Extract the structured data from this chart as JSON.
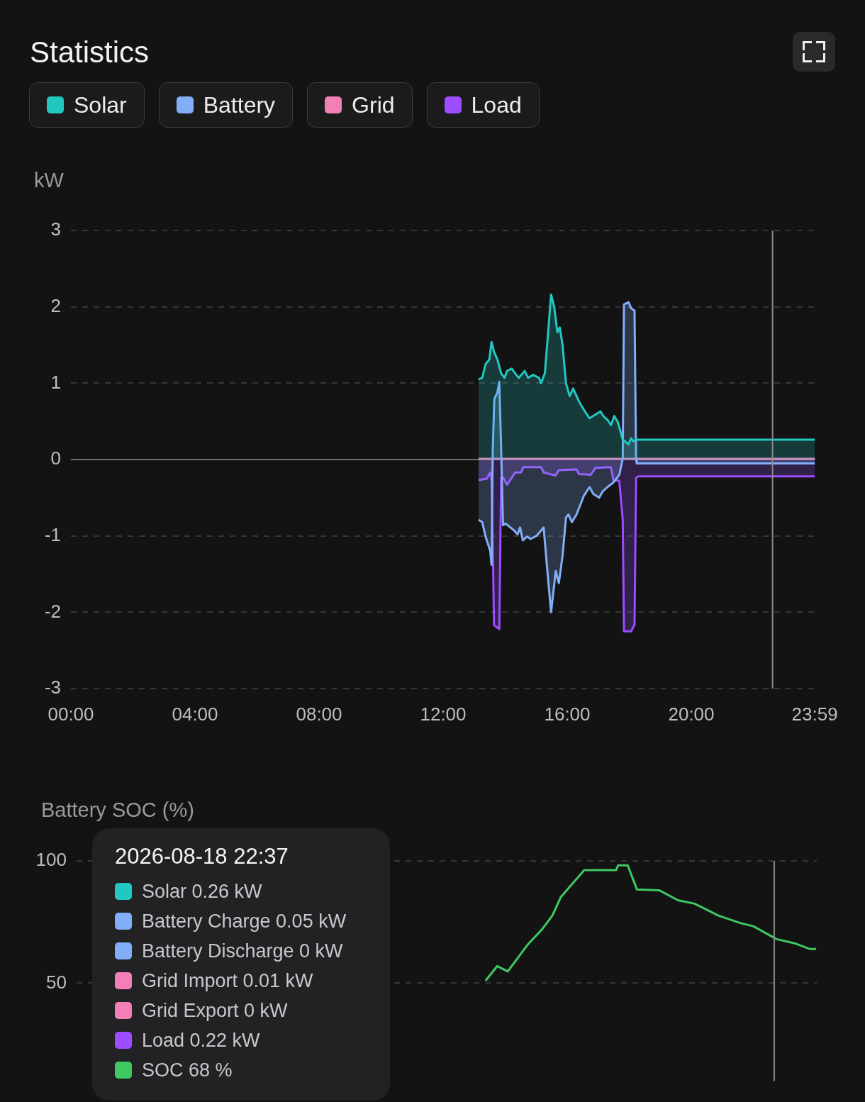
{
  "chart_data": [
    {
      "type": "area",
      "title": "Statistics",
      "ylabel": "kW",
      "legend": "top left",
      "grid": "y",
      "xlim": [
        0,
        24
      ],
      "xticks": [
        {
          "value": 0,
          "label": "00:00"
        },
        {
          "value": 4,
          "label": "04:00"
        },
        {
          "value": 8,
          "label": "08:00"
        },
        {
          "value": 12,
          "label": "12:00"
        },
        {
          "value": 16,
          "label": "16:00"
        },
        {
          "value": 20,
          "label": "20:00"
        },
        {
          "value": 23.98,
          "label": "23:59"
        }
      ],
      "ylim": [
        -3,
        3
      ],
      "yticks": [
        -3,
        -2,
        -1,
        0,
        1,
        2,
        3
      ],
      "series": [
        {
          "name": "Solar",
          "color": "#22c7c0",
          "x": [
            13.14,
            13.26,
            13.37,
            13.49,
            13.56,
            13.64,
            13.75,
            13.87,
            13.98,
            14.06,
            14.21,
            14.32,
            14.44,
            14.63,
            14.74,
            14.9,
            15.09,
            15.16,
            15.28,
            15.39,
            15.48,
            15.58,
            15.68,
            15.76,
            15.85,
            15.96,
            16.08,
            16.19,
            16.38,
            16.57,
            16.72,
            16.91,
            17.07,
            17.18,
            17.3,
            17.41,
            17.52,
            17.64,
            17.79,
            17.98,
            18.06,
            18.13,
            18.2,
            23.98
          ],
          "values": [
            1.05,
            1.07,
            1.25,
            1.31,
            1.54,
            1.41,
            1.31,
            1.13,
            1.07,
            1.16,
            1.19,
            1.13,
            1.07,
            1.16,
            1.07,
            1.11,
            1.07,
            1.0,
            1.13,
            1.69,
            2.16,
            2.0,
            1.67,
            1.73,
            1.5,
            1.0,
            0.83,
            0.93,
            0.76,
            0.63,
            0.54,
            0.59,
            0.63,
            0.56,
            0.52,
            0.45,
            0.57,
            0.48,
            0.26,
            0.2,
            0.28,
            0.24,
            0.26,
            0.26
          ]
        },
        {
          "name": "Battery",
          "color": "#82aef8",
          "x": [
            13.14,
            13.26,
            13.37,
            13.52,
            13.56,
            13.6,
            13.65,
            13.75,
            13.81,
            13.87,
            13.93,
            14.02,
            14.17,
            14.29,
            14.4,
            14.48,
            14.57,
            14.7,
            14.82,
            15.01,
            15.24,
            15.35,
            15.48,
            15.63,
            15.73,
            15.85,
            15.96,
            16.04,
            16.15,
            16.3,
            16.53,
            16.72,
            16.84,
            17.03,
            17.14,
            17.3,
            17.49,
            17.68,
            17.79,
            17.83,
            17.98,
            18.06,
            18.17,
            18.22,
            18.24,
            23.98
          ],
          "values": [
            -0.79,
            -0.82,
            -1.01,
            -1.2,
            -1.38,
            0.14,
            0.79,
            0.88,
            1.02,
            0.14,
            -0.86,
            -0.84,
            -0.89,
            -0.93,
            -0.98,
            -0.89,
            -1.06,
            -1.01,
            -1.04,
            -1.0,
            -0.89,
            -1.41,
            -2.0,
            -1.46,
            -1.62,
            -1.26,
            -0.76,
            -0.72,
            -0.82,
            -0.72,
            -0.48,
            -0.36,
            -0.45,
            -0.5,
            -0.42,
            -0.36,
            -0.3,
            -0.2,
            0.01,
            2.03,
            2.06,
            1.98,
            1.95,
            0.01,
            -0.05,
            -0.05
          ]
        },
        {
          "name": "Grid",
          "color": "#f27fb8",
          "x": [
            13.14,
            23.98
          ],
          "values": [
            0.01,
            0.01
          ]
        },
        {
          "name": "Load",
          "color": "#9b4dff",
          "x": [
            13.14,
            13.41,
            13.52,
            13.56,
            13.6,
            13.64,
            13.81,
            13.87,
            13.94,
            14.06,
            14.21,
            14.32,
            14.51,
            14.59,
            15.16,
            15.24,
            15.62,
            15.73,
            16.3,
            16.38,
            16.76,
            16.91,
            17.41,
            17.49,
            17.68,
            17.79,
            17.83,
            18.06,
            18.17,
            18.22,
            18.29,
            23.98
          ],
          "values": [
            -0.27,
            -0.25,
            -0.17,
            -0.27,
            -1.1,
            -2.17,
            -2.22,
            -0.24,
            -0.24,
            -0.33,
            -0.24,
            -0.17,
            -0.17,
            -0.1,
            -0.1,
            -0.17,
            -0.21,
            -0.14,
            -0.13,
            -0.19,
            -0.2,
            -0.11,
            -0.1,
            -0.27,
            -0.28,
            -0.79,
            -2.25,
            -2.25,
            -2.16,
            -0.24,
            -0.22,
            -0.22
          ]
        }
      ],
      "ref_lines": [
        {
          "axis": "x",
          "value": 22.62,
          "color": "#8a8a8a"
        }
      ],
      "annotations": [
        "2026-08-18 22:37",
        "Solar 0.26 kW",
        "Battery Charge 0.05 kW",
        "Battery Discharge 0 kW",
        "Grid Import 0.01 kW",
        "Grid Export 0 kW",
        "Load 0.22 kW",
        "SOC 68 %"
      ]
    },
    {
      "type": "line",
      "ylabel": "Battery SOC (%)",
      "grid": "y",
      "tick_labels": "y",
      "xlim": [
        0,
        24
      ],
      "ylim": [
        10,
        100
      ],
      "yticks": [
        50,
        100
      ],
      "series": [
        {
          "color": "#3ec962",
          "x": [
            13.26,
            13.64,
            13.98,
            14.63,
            15.09,
            15.43,
            15.7,
            16.46,
            17.49,
            17.56,
            17.87,
            18.17,
            18.89,
            19.5,
            20.04,
            20.8,
            21.52,
            21.94,
            22.7,
            23.31,
            23.77,
            23.98
          ],
          "values": [
            51,
            57,
            54.8,
            65.8,
            72,
            77.7,
            85.2,
            96.2,
            96.2,
            98.2,
            98.2,
            88.3,
            88,
            83.9,
            82.5,
            77.7,
            74.6,
            73.3,
            68,
            66.2,
            64,
            64
          ]
        }
      ],
      "ref_lines": [
        {
          "axis": "x",
          "value": 22.62,
          "color": "#8a8a8a"
        }
      ]
    }
  ]
}
